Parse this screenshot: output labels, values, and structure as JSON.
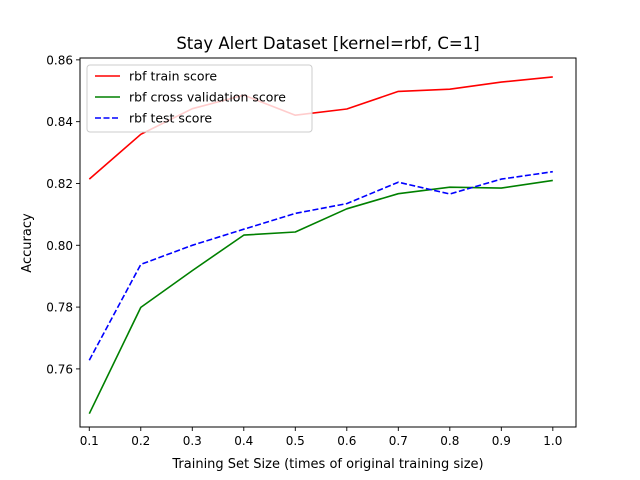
{
  "chart_data": {
    "type": "line",
    "title": "Stay Alert Dataset [kernel=rbf, C=1]",
    "xlabel": "Training Set Size (times of original training size)",
    "ylabel": "Accuracy",
    "xlim": [
      0.082,
      1.045
    ],
    "ylim": [
      0.7412,
      0.8606
    ],
    "x_ticks": [
      "0.1",
      "0.2",
      "0.3",
      "0.4",
      "0.5",
      "0.6",
      "0.7",
      "0.8",
      "0.9",
      "1.0"
    ],
    "y_ticks": [
      "0.76",
      "0.78",
      "0.80",
      "0.82",
      "0.84",
      "0.86"
    ],
    "legend_position": "top-left",
    "grid": false,
    "x": [
      0.1,
      0.2,
      0.3,
      0.4,
      0.5,
      0.6,
      0.7,
      0.8,
      0.9,
      1.0
    ],
    "series": [
      {
        "name": "rbf train score",
        "color": "#ff0000",
        "dashed": false,
        "values": [
          0.8214,
          0.8359,
          0.8442,
          0.8486,
          0.8421,
          0.8441,
          0.8498,
          0.8505,
          0.8528,
          0.8545
        ]
      },
      {
        "name": "rbf cross validation score",
        "color": "#008000",
        "dashed": false,
        "values": [
          0.7455,
          0.7799,
          0.7918,
          0.8033,
          0.8043,
          0.8118,
          0.8167,
          0.8188,
          0.8185,
          0.821
        ]
      },
      {
        "name": "rbf test score",
        "color": "#0000ff",
        "dashed": true,
        "values": [
          0.7628,
          0.7938,
          0.8,
          0.8052,
          0.8103,
          0.8135,
          0.8204,
          0.8166,
          0.8214,
          0.8238
        ]
      }
    ]
  }
}
